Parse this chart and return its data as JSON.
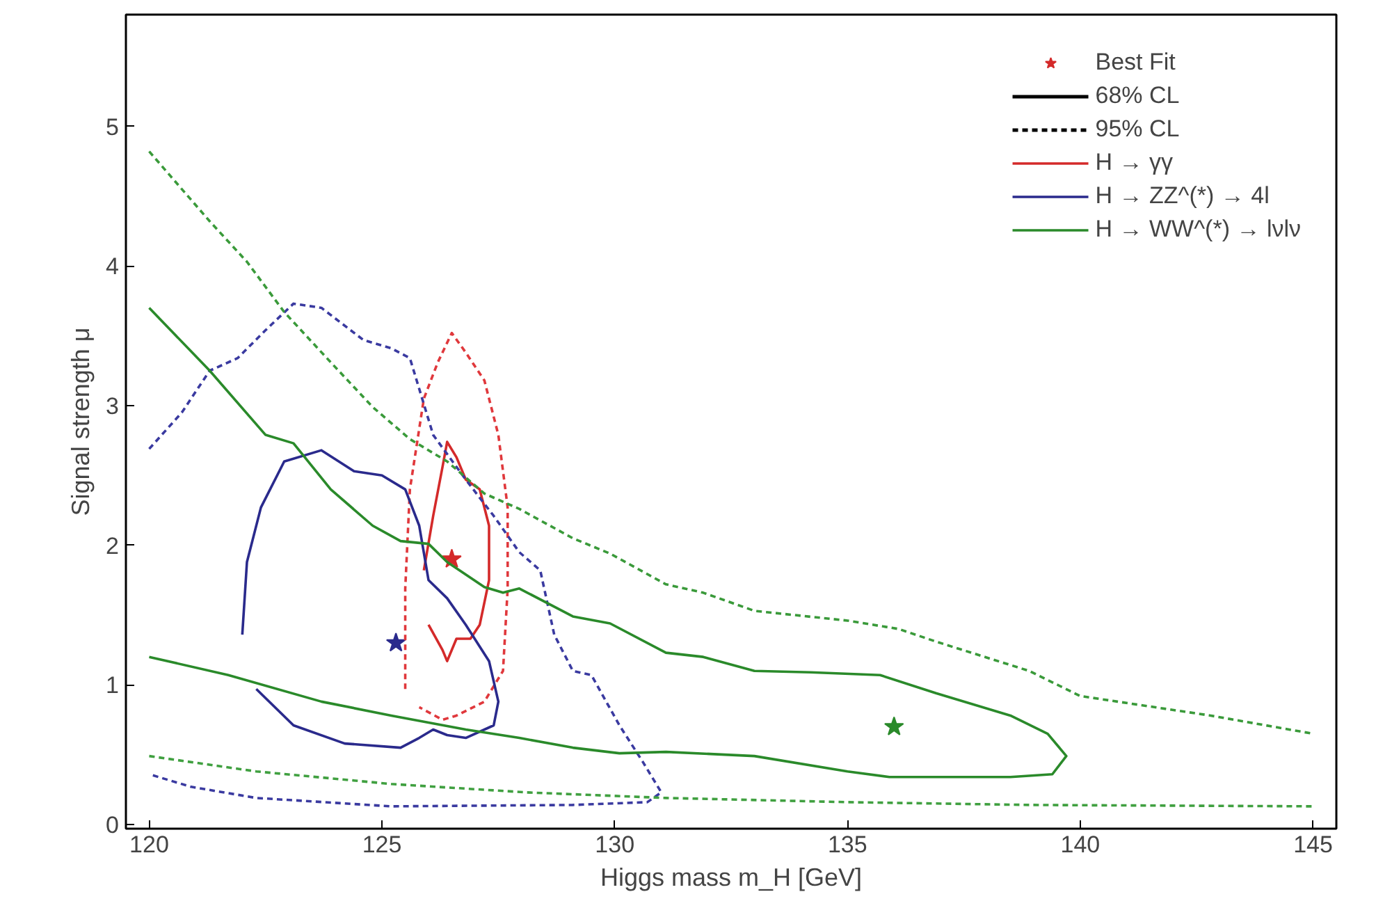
{
  "chart_data": {
    "type": "line",
    "xlabel": "Higgs mass m_H [GeV]",
    "ylabel": "Signal strength μ",
    "xlim": [
      119.5,
      145.5
    ],
    "ylim": [
      -0.03,
      5.8
    ],
    "xticks": [
      120,
      125,
      130,
      135,
      140,
      145
    ],
    "yticks": [
      0,
      1,
      2,
      3,
      4,
      5
    ],
    "grid": false,
    "legend": "top right",
    "annotations": [
      "68% CL",
      "95% CL"
    ],
    "series": [
      {
        "name": "Best Fit",
        "type": "scatter",
        "marker": "star",
        "colors": [
          "#d42a2a",
          "#2a2a8c",
          "#2a8a2a"
        ],
        "x": [
          126.5,
          125.3,
          136
        ],
        "values": [
          1.9,
          1.3,
          0.7
        ]
      },
      {
        "name": "H → γγ",
        "color": "#d42a2a",
        "line_style": "solid",
        "x": [
          125.9,
          126.1,
          126.3,
          126.4,
          126.6,
          126.8,
          127.1,
          127.3,
          127.3,
          127.1,
          126.9,
          126.6,
          126.4,
          126.3,
          126.0
        ],
        "values": [
          1.82,
          2.21,
          2.56,
          2.74,
          2.63,
          2.47,
          2.4,
          2.14,
          1.75,
          1.43,
          1.33,
          1.33,
          1.17,
          1.25,
          1.43
        ]
      },
      {
        "color": "#e0383c",
        "line_style": "dashed",
        "x": [
          125.5,
          125.5,
          125.6,
          125.9,
          126.2,
          126.5,
          126.8,
          127.2,
          127.5,
          127.7,
          127.7,
          127.6,
          127.2,
          126.6,
          126.3,
          125.8
        ],
        "values": [
          0.97,
          1.69,
          2.4,
          3.05,
          3.31,
          3.52,
          3.38,
          3.18,
          2.79,
          2.27,
          1.69,
          1.1,
          0.88,
          0.78,
          0.75,
          0.84
        ]
      },
      {
        "name": "H → ZZ^(*) → 4l",
        "color": "#2a2a8c",
        "line_style": "solid",
        "x": [
          122.0,
          122.1,
          122.4,
          122.9,
          123.7,
          124.4,
          125.0,
          125.5,
          125.8,
          126.0,
          126.4,
          126.8,
          127.3,
          127.5,
          127.4,
          126.8,
          126.4,
          126.1,
          125.8,
          125.4,
          124.2,
          123.1,
          122.3
        ],
        "values": [
          1.36,
          1.88,
          2.27,
          2.6,
          2.68,
          2.53,
          2.5,
          2.4,
          2.14,
          1.75,
          1.62,
          1.43,
          1.17,
          0.88,
          0.71,
          0.62,
          0.64,
          0.68,
          0.62,
          0.55,
          0.58,
          0.71,
          0.97
        ]
      },
      {
        "color": "#3a3aa0",
        "line_style": "dashed",
        "x": [
          120,
          120.7,
          121.3,
          121.9,
          122.5,
          123.1,
          123.7,
          124.6,
          125.2,
          125.6,
          125.8,
          126.1,
          126.8,
          127.4,
          127.95,
          128.4,
          128.7,
          129.1,
          129.5,
          130.1,
          130.6,
          131.0,
          130.7,
          129.1,
          125.2,
          122.3,
          120.9,
          120
        ],
        "values": [
          2.69,
          2.95,
          3.25,
          3.34,
          3.54,
          3.73,
          3.7,
          3.47,
          3.41,
          3.34,
          3.12,
          2.79,
          2.47,
          2.21,
          1.95,
          1.82,
          1.36,
          1.1,
          1.07,
          0.71,
          0.45,
          0.23,
          0.16,
          0.14,
          0.13,
          0.19,
          0.27,
          0.36
        ]
      },
      {
        "name": "H → WW^(*) → lνlν",
        "color": "#2a8a2a",
        "line_style": "solid",
        "x": [
          120,
          121.3,
          122.5,
          123.1,
          123.9,
          124.8,
          125.4,
          126.0,
          126.4,
          127.2,
          127.6,
          127.95,
          129.1,
          129.9,
          131.1,
          131.9,
          133.0,
          134.2,
          135.7,
          136.9,
          138.5,
          139.3,
          139.7,
          139.4,
          138.5,
          136.9,
          135.9,
          135.0,
          133.0,
          131.1,
          130.1,
          129.1,
          127.95,
          126.8,
          125.2,
          123.7,
          121.7,
          120
        ],
        "values": [
          3.7,
          3.25,
          2.79,
          2.73,
          2.4,
          2.14,
          2.03,
          2.01,
          1.88,
          1.7,
          1.66,
          1.69,
          1.49,
          1.44,
          1.23,
          1.2,
          1.1,
          1.09,
          1.07,
          0.94,
          0.78,
          0.65,
          0.49,
          0.36,
          0.34,
          0.34,
          0.34,
          0.38,
          0.49,
          0.52,
          0.51,
          0.55,
          0.62,
          0.68,
          0.78,
          0.88,
          1.07,
          1.2
        ]
      },
      {
        "color": "#3a9a3a",
        "line_style": "dashed",
        "x": [
          120,
          121.3,
          122.1,
          122.9,
          123.9,
          124.8,
          125.6,
          126.4,
          127.2,
          127.95,
          129.1,
          129.9,
          131.1,
          131.9,
          133.0,
          135.0,
          136.1,
          136.9,
          138.9,
          140.0,
          140.8,
          142.8,
          145
        ],
        "values": [
          4.82,
          4.32,
          4.03,
          3.67,
          3.31,
          2.99,
          2.76,
          2.6,
          2.37,
          2.26,
          2.05,
          1.94,
          1.72,
          1.66,
          1.53,
          1.46,
          1.4,
          1.31,
          1.1,
          0.92,
          0.88,
          0.78,
          0.65
        ]
      },
      {
        "color": "#40a040",
        "line_style": "dashed",
        "x": [
          120,
          122.3,
          125.2,
          128.1,
          131.1,
          135.0,
          138.9,
          145
        ],
        "values": [
          0.49,
          0.38,
          0.29,
          0.23,
          0.19,
          0.16,
          0.14,
          0.13
        ]
      }
    ]
  }
}
